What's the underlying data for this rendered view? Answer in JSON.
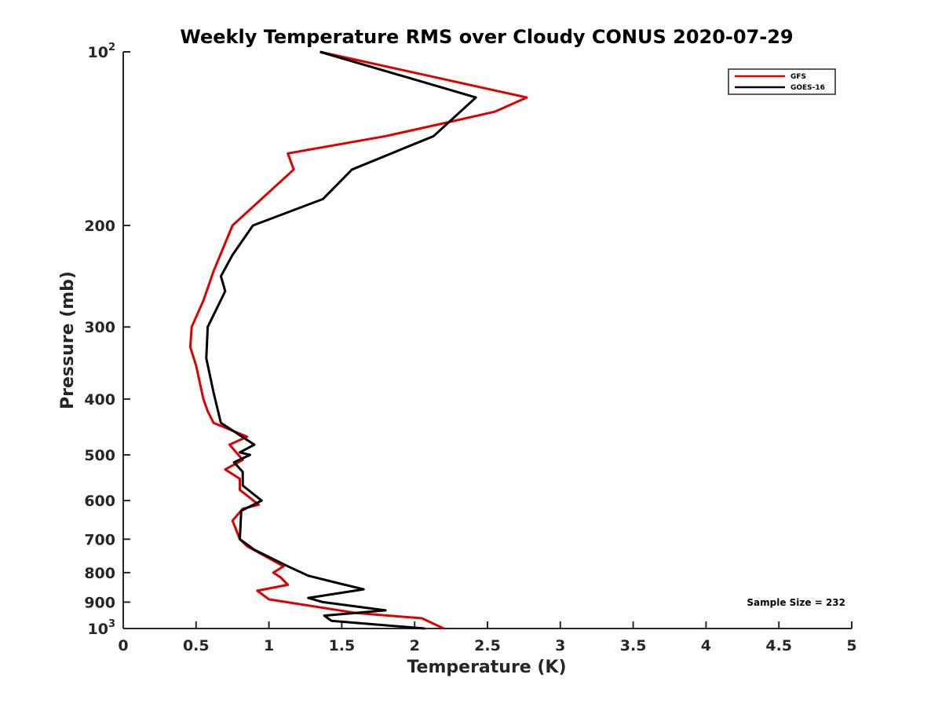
{
  "chart_data": {
    "type": "line",
    "title": "Weekly Temperature RMS over Cloudy CONUS 2020-07-29",
    "xlabel": "Temperature (K)",
    "ylabel": "Pressure (mb)",
    "xlim": [
      0,
      5
    ],
    "ylim": [
      100,
      1000
    ],
    "y_scale": "log",
    "y_reversed": true,
    "x_ticks": [
      {
        "value": 0,
        "label": "0"
      },
      {
        "value": 0.5,
        "label": "0.5"
      },
      {
        "value": 1,
        "label": "1"
      },
      {
        "value": 1.5,
        "label": "1.5"
      },
      {
        "value": 2,
        "label": "2"
      },
      {
        "value": 2.5,
        "label": "2.5"
      },
      {
        "value": 3,
        "label": "3"
      },
      {
        "value": 3.5,
        "label": "3.5"
      },
      {
        "value": 4,
        "label": "4"
      },
      {
        "value": 4.5,
        "label": "4.5"
      },
      {
        "value": 5,
        "label": "5"
      }
    ],
    "y_ticks": [
      {
        "value": 100,
        "label": "10",
        "exp": "2"
      },
      {
        "value": 200,
        "label": "200"
      },
      {
        "value": 300,
        "label": "300"
      },
      {
        "value": 400,
        "label": "400"
      },
      {
        "value": 500,
        "label": "500"
      },
      {
        "value": 600,
        "label": "600"
      },
      {
        "value": 700,
        "label": "700"
      },
      {
        "value": 800,
        "label": "800"
      },
      {
        "value": 900,
        "label": "900"
      },
      {
        "value": 1000,
        "label": "10",
        "exp": "3"
      }
    ],
    "grid": false,
    "legend_position": "top-right",
    "annotation": "Sample Size = 232",
    "series": [
      {
        "name": "GFS",
        "color": "#dd0000",
        "points": [
          [
            1.35,
            100
          ],
          [
            2.77,
            120
          ],
          [
            2.55,
            127
          ],
          [
            2.2,
            133
          ],
          [
            1.8,
            140
          ],
          [
            1.13,
            150
          ],
          [
            1.17,
            160
          ],
          [
            0.75,
            200
          ],
          [
            0.62,
            240
          ],
          [
            0.55,
            270
          ],
          [
            0.47,
            300
          ],
          [
            0.46,
            325
          ],
          [
            0.5,
            350
          ],
          [
            0.55,
            400
          ],
          [
            0.58,
            420
          ],
          [
            0.62,
            440
          ],
          [
            0.85,
            465
          ],
          [
            0.73,
            480
          ],
          [
            0.82,
            510
          ],
          [
            0.7,
            530
          ],
          [
            0.8,
            550
          ],
          [
            0.8,
            575
          ],
          [
            0.93,
            610
          ],
          [
            0.82,
            620
          ],
          [
            0.75,
            650
          ],
          [
            0.8,
            700
          ],
          [
            0.85,
            720
          ],
          [
            1.1,
            780
          ],
          [
            1.03,
            800
          ],
          [
            1.08,
            815
          ],
          [
            1.13,
            840
          ],
          [
            0.92,
            860
          ],
          [
            1.0,
            890
          ],
          [
            1.6,
            940
          ],
          [
            2.05,
            960
          ],
          [
            2.2,
            1000
          ]
        ]
      },
      {
        "name": "GOES-16",
        "color": "#000000",
        "points": [
          [
            1.35,
            100
          ],
          [
            2.42,
            120
          ],
          [
            2.13,
            140
          ],
          [
            1.57,
            160
          ],
          [
            1.37,
            180
          ],
          [
            0.89,
            200
          ],
          [
            0.75,
            225
          ],
          [
            0.67,
            245
          ],
          [
            0.7,
            260
          ],
          [
            0.58,
            300
          ],
          [
            0.57,
            340
          ],
          [
            0.62,
            390
          ],
          [
            0.67,
            440
          ],
          [
            0.9,
            480
          ],
          [
            0.8,
            495
          ],
          [
            0.87,
            500
          ],
          [
            0.76,
            515
          ],
          [
            0.82,
            535
          ],
          [
            0.82,
            565
          ],
          [
            0.95,
            600
          ],
          [
            0.81,
            625
          ],
          [
            0.8,
            700
          ],
          [
            0.9,
            730
          ],
          [
            1.13,
            780
          ],
          [
            1.27,
            810
          ],
          [
            1.48,
            835
          ],
          [
            1.65,
            855
          ],
          [
            1.27,
            885
          ],
          [
            1.37,
            900
          ],
          [
            1.8,
            930
          ],
          [
            1.38,
            950
          ],
          [
            1.43,
            970
          ],
          [
            1.65,
            980
          ],
          [
            2.07,
            1000
          ]
        ]
      }
    ]
  }
}
